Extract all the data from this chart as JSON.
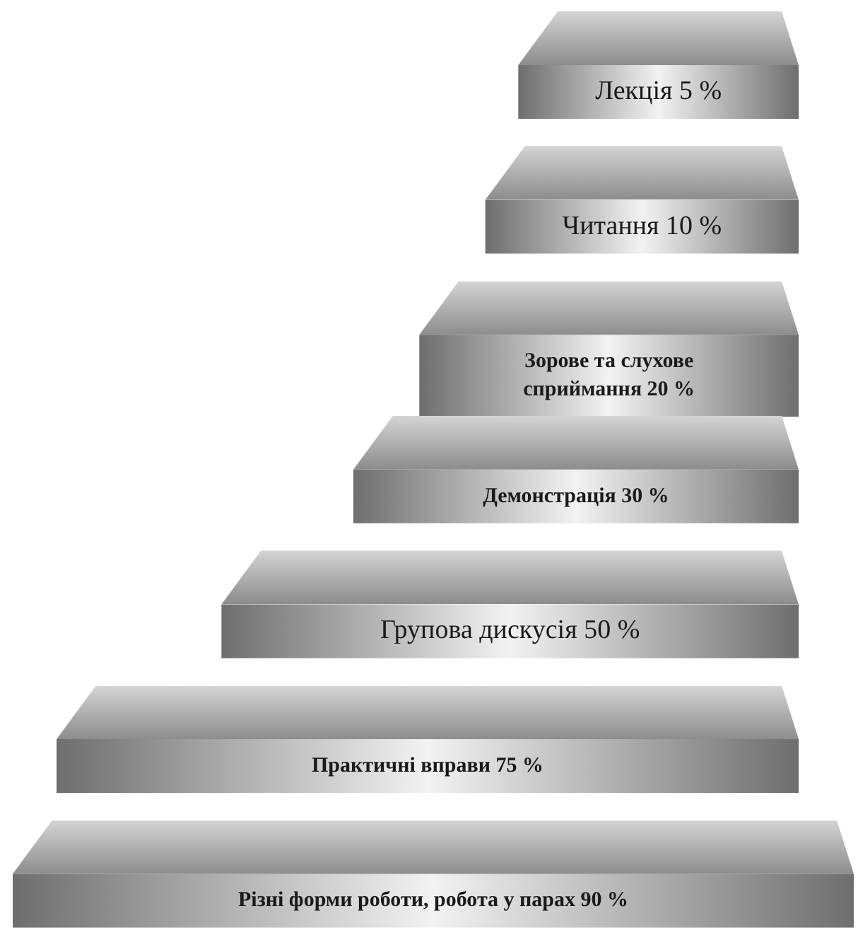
{
  "chart_data": {
    "type": "other",
    "categories": [
      "Лекція",
      "Читання",
      "Зорове та слухове сприймання",
      "Демонстрація",
      "Групова дискусія",
      "Практичні вправи",
      "Різні форми роботи, робота у парах"
    ],
    "values": [
      5,
      10,
      20,
      30,
      50,
      75,
      90
    ],
    "value_labels": [
      "5 %",
      "10 %",
      "20 %",
      "30 %",
      "50 %",
      "75 %",
      "90 %"
    ]
  }
}
